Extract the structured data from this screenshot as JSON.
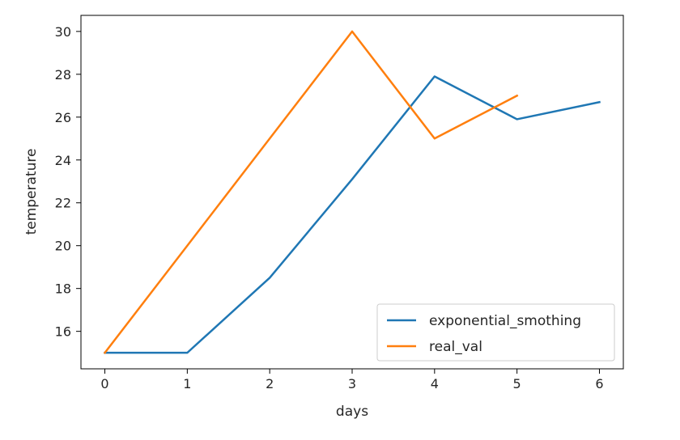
{
  "chart_data": {
    "type": "line",
    "xlabel": "days",
    "ylabel": "temperature",
    "xlim": [
      -0.29,
      6.29
    ],
    "ylim": [
      14.25,
      30.75
    ],
    "xticks": [
      0,
      1,
      2,
      3,
      4,
      5,
      6
    ],
    "yticks": [
      16,
      18,
      20,
      22,
      24,
      26,
      28,
      30
    ],
    "grid": false,
    "legend_position": "lower-right",
    "series": [
      {
        "name": "exponential_smothing",
        "color": "#1f77b4",
        "x": [
          0,
          1,
          2,
          3,
          4,
          5,
          6
        ],
        "values": [
          15,
          15,
          18.5,
          23.1,
          27.9,
          25.9,
          26.7
        ]
      },
      {
        "name": "real_val",
        "color": "#ff7f0e",
        "x": [
          0,
          1,
          2,
          3,
          4,
          5
        ],
        "values": [
          15,
          20,
          25,
          30,
          25,
          27
        ]
      }
    ]
  }
}
